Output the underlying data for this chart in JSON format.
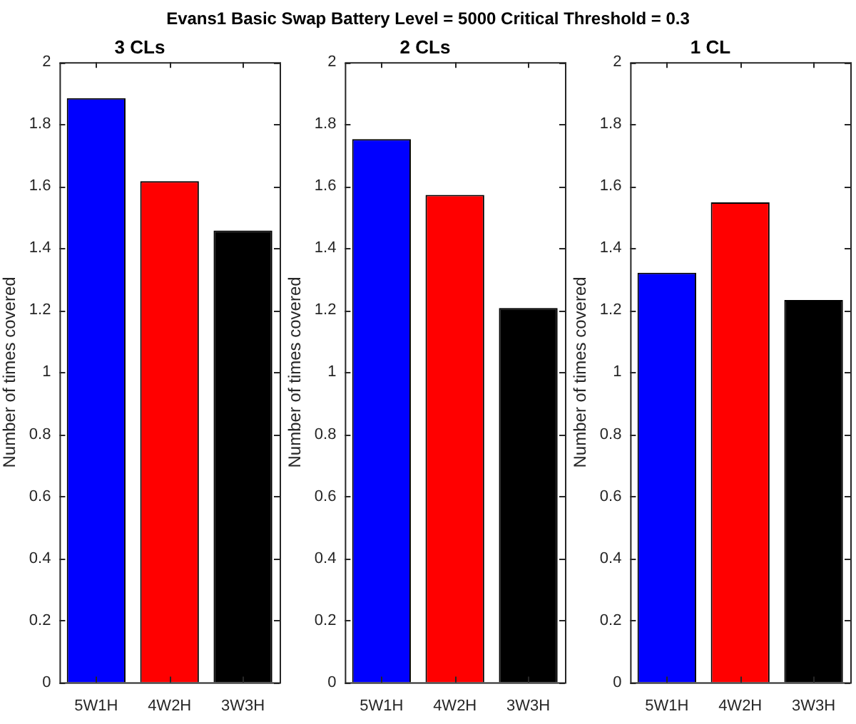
{
  "chart_data": [
    {
      "type": "bar",
      "title": "3 CLs",
      "ylabel": "Number of times covered",
      "annotations": [
        "Evans1 Basic Swap Battery Level = 5000 Critical Threshold = 0.3"
      ],
      "categories": [
        "5W1H",
        "4W2H",
        "3W3H"
      ],
      "values": [
        1.884,
        1.616,
        1.457
      ],
      "colors": [
        "#0000ff",
        "#ff0000",
        "#000000"
      ],
      "ylim": [
        0,
        2
      ],
      "yticks": [
        0,
        0.2,
        0.4,
        0.6,
        0.8,
        1,
        1.2,
        1.4,
        1.6,
        1.8,
        2
      ]
    },
    {
      "type": "bar",
      "title": "2 CLs",
      "ylabel": "Number of times covered",
      "categories": [
        "5W1H",
        "4W2H",
        "3W3H"
      ],
      "values": [
        1.752,
        1.572,
        1.207
      ],
      "colors": [
        "#0000ff",
        "#ff0000",
        "#000000"
      ],
      "ylim": [
        0,
        2
      ],
      "yticks": [
        0,
        0.2,
        0.4,
        0.6,
        0.8,
        1,
        1.2,
        1.4,
        1.6,
        1.8,
        2
      ]
    },
    {
      "type": "bar",
      "title": "1 CL",
      "ylabel": "Number of times covered",
      "categories": [
        "5W1H",
        "4W2H",
        "3W3H"
      ],
      "values": [
        1.321,
        1.548,
        1.233
      ],
      "colors": [
        "#0000ff",
        "#ff0000",
        "#000000"
      ],
      "ylim": [
        0,
        2
      ],
      "yticks": [
        0,
        0.2,
        0.4,
        0.6,
        0.8,
        1,
        1.2,
        1.4,
        1.6,
        1.8,
        2
      ]
    }
  ]
}
